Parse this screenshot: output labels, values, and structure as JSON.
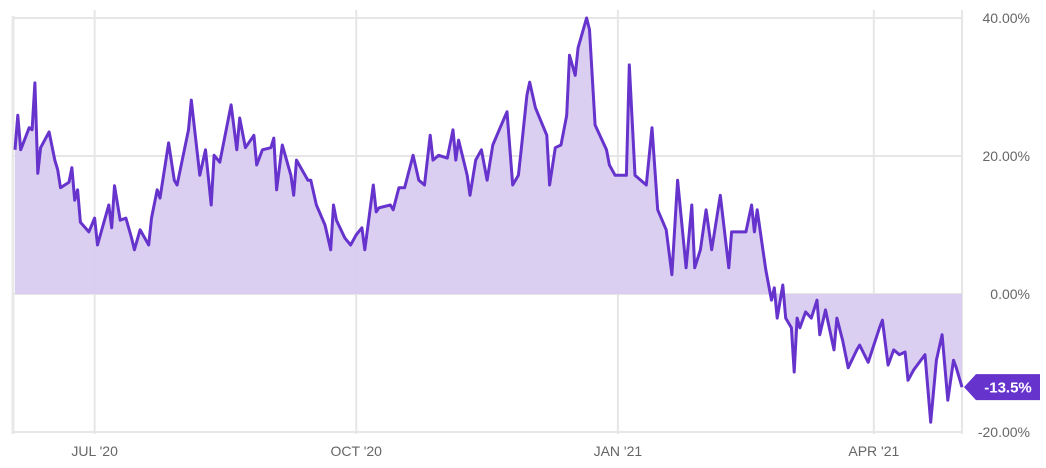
{
  "chart_data": {
    "type": "area",
    "title": "",
    "xlabel": "",
    "ylabel": "",
    "xlim": [
      "2020-06-03",
      "2021-05-02"
    ],
    "ylim": [
      -20,
      40
    ],
    "y_ticks": [
      {
        "value": 40,
        "label": "40.00%"
      },
      {
        "value": 20,
        "label": "20.00%"
      },
      {
        "value": 0,
        "label": "0.00%"
      },
      {
        "value": -20,
        "label": "-20.00%"
      }
    ],
    "x_ticks": [
      {
        "date": "2020-07-01",
        "label": "JUL '20"
      },
      {
        "date": "2020-10-01",
        "label": "OCT '20"
      },
      {
        "date": "2021-01-01",
        "label": "JAN '21"
      },
      {
        "date": "2021-04-01",
        "label": "APR '21"
      }
    ],
    "y_axis_position": "right",
    "grid": true,
    "legend": "none",
    "colors": {
      "line": "#6633cc",
      "fill": "#d9ccf0",
      "label_bg": "#6633cc",
      "grid": "#e6e6e6"
    },
    "end_label": "-13.5%",
    "series": [
      {
        "x": [
          "2020-06-03",
          "2020-06-04",
          "2020-06-05",
          "2020-06-08",
          "2020-06-09",
          "2020-06-10",
          "2020-06-11",
          "2020-06-12",
          "2020-06-15",
          "2020-06-17",
          "2020-06-18",
          "2020-06-19",
          "2020-06-22",
          "2020-06-23",
          "2020-06-24",
          "2020-06-25",
          "2020-06-26",
          "2020-06-29",
          "2020-07-01",
          "2020-07-02",
          "2020-07-06",
          "2020-07-07",
          "2020-07-08",
          "2020-07-10",
          "2020-07-12",
          "2020-07-14",
          "2020-07-15",
          "2020-07-17",
          "2020-07-20",
          "2020-07-21",
          "2020-07-23",
          "2020-07-24",
          "2020-07-27",
          "2020-07-29",
          "2020-07-30",
          "2020-08-03",
          "2020-08-04",
          "2020-08-07",
          "2020-08-09",
          "2020-08-11",
          "2020-08-12",
          "2020-08-14",
          "2020-08-18",
          "2020-08-20",
          "2020-08-21",
          "2020-08-23",
          "2020-08-26",
          "2020-08-27",
          "2020-08-29",
          "2020-09-01",
          "2020-09-02",
          "2020-09-03",
          "2020-09-05",
          "2020-09-08",
          "2020-09-09",
          "2020-09-10",
          "2020-09-14",
          "2020-09-15",
          "2020-09-17",
          "2020-09-20",
          "2020-09-22",
          "2020-09-23",
          "2020-09-24",
          "2020-09-27",
          "2020-09-29",
          "2020-10-01",
          "2020-10-03",
          "2020-10-04",
          "2020-10-07",
          "2020-10-08",
          "2020-10-09",
          "2020-10-13",
          "2020-10-14",
          "2020-10-16",
          "2020-10-18",
          "2020-10-21",
          "2020-10-23",
          "2020-10-25",
          "2020-10-27",
          "2020-10-28",
          "2020-10-30",
          "2020-11-02",
          "2020-11-04",
          "2020-11-05",
          "2020-11-06",
          "2020-11-09",
          "2020-11-10",
          "2020-11-12",
          "2020-11-14",
          "2020-11-16",
          "2020-11-18",
          "2020-11-21",
          "2020-11-23",
          "2020-11-25",
          "2020-11-27",
          "2020-11-28",
          "2020-11-30",
          "2020-12-01",
          "2020-12-03",
          "2020-12-07",
          "2020-12-08",
          "2020-12-10",
          "2020-12-12",
          "2020-12-14",
          "2020-12-15",
          "2020-12-17",
          "2020-12-18",
          "2020-12-21",
          "2020-12-22",
          "2020-12-24",
          "2020-12-28",
          "2020-12-29",
          "2020-12-31",
          "2021-01-04",
          "2021-01-05",
          "2021-01-07",
          "2021-01-11",
          "2021-01-13",
          "2021-01-15",
          "2021-01-18",
          "2021-01-20",
          "2021-01-22",
          "2021-01-25",
          "2021-01-27",
          "2021-01-28",
          "2021-01-30",
          "2021-02-01",
          "2021-02-03",
          "2021-02-06",
          "2021-02-09",
          "2021-02-10",
          "2021-02-15",
          "2021-02-17",
          "2021-02-18",
          "2021-02-19",
          "2021-02-21",
          "2021-02-22",
          "2021-02-24",
          "2021-02-25",
          "2021-02-26",
          "2021-02-28",
          "2021-03-01",
          "2021-03-03",
          "2021-03-04",
          "2021-03-05",
          "2021-03-06",
          "2021-03-08",
          "2021-03-10",
          "2021-03-12",
          "2021-03-13",
          "2021-03-15",
          "2021-03-18",
          "2021-03-19",
          "2021-03-21",
          "2021-03-23",
          "2021-03-26",
          "2021-03-27",
          "2021-03-30",
          "2021-04-01",
          "2021-04-03",
          "2021-04-04",
          "2021-04-06",
          "2021-04-08",
          "2021-04-10",
          "2021-04-12",
          "2021-04-13",
          "2021-04-15",
          "2021-04-19",
          "2021-04-21",
          "2021-04-23",
          "2021-04-25",
          "2021-04-27",
          "2021-04-29",
          "2021-04-30",
          "2021-05-02"
        ],
        "values": [
          20.9,
          25.9,
          20.9,
          24.1,
          23.8,
          30.6,
          17.5,
          21.2,
          23.5,
          19.4,
          18.0,
          15.4,
          16.2,
          18.3,
          13.6,
          15.1,
          10.4,
          9.0,
          11.0,
          7.1,
          12.9,
          9.6,
          15.7,
          10.7,
          11.0,
          8.1,
          6.4,
          9.3,
          7.1,
          11.0,
          15.1,
          13.9,
          21.9,
          16.5,
          15.8,
          23.8,
          28.1,
          17.2,
          20.9,
          12.9,
          20.1,
          19.1,
          27.4,
          20.9,
          25.5,
          21.2,
          23.0,
          18.7,
          20.9,
          21.2,
          22.6,
          15.1,
          21.6,
          17.2,
          14.3,
          19.4,
          16.5,
          16.5,
          12.9,
          10.0,
          6.4,
          12.9,
          10.7,
          8.1,
          7.1,
          8.6,
          9.6,
          6.4,
          15.8,
          11.9,
          12.5,
          12.9,
          12.2,
          15.4,
          15.4,
          20.1,
          16.5,
          15.8,
          23.0,
          19.4,
          20.1,
          19.7,
          23.8,
          19.4,
          22.3,
          17.2,
          14.3,
          19.4,
          20.9,
          16.5,
          21.6,
          24.5,
          26.4,
          15.8,
          17.2,
          20.9,
          28.8,
          30.7,
          27.0,
          23.0,
          15.8,
          21.2,
          21.6,
          25.9,
          34.6,
          31.7,
          35.7,
          40.0,
          38.3,
          24.5,
          20.9,
          18.7,
          17.2,
          17.2,
          33.2,
          17.2,
          15.8,
          24.1,
          12.2,
          9.3,
          2.8,
          16.5,
          3.8,
          12.9,
          3.8,
          6.4,
          12.2,
          6.4,
          14.3,
          3.8,
          9.0,
          9.0,
          12.9,
          9.0,
          12.2,
          6.4,
          3.5,
          -0.9,
          0.9,
          -3.5,
          1.3,
          -3.5,
          -4.9,
          -11.3,
          -3.5,
          -4.9,
          -2.6,
          -3.5,
          -0.9,
          -5.9,
          -2.3,
          -8.1,
          -3.5,
          -6.7,
          -10.7,
          -8.1,
          -7.4,
          -9.9,
          -7.4,
          -4.9,
          -3.8,
          -10.3,
          -8.1,
          -8.8,
          -8.4,
          -12.5,
          -11.0,
          -8.8,
          -18.6,
          -9.6,
          -5.9,
          -15.4,
          -9.6,
          -10.7,
          -13.5
        ]
      }
    ]
  }
}
